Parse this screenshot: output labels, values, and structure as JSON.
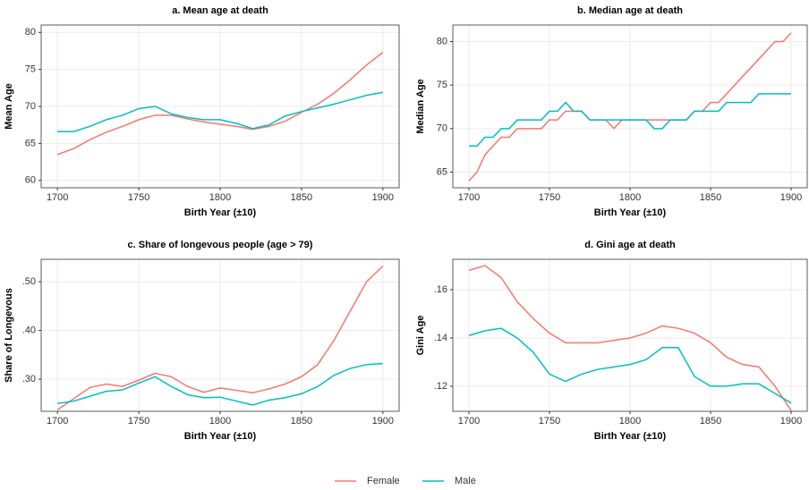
{
  "chart_data": [
    {
      "type": "line",
      "title": "a. Mean age at death",
      "xlabel": "Birth Year (±10)",
      "ylabel": "Mean Age",
      "x": [
        1700,
        1710,
        1720,
        1730,
        1740,
        1750,
        1760,
        1770,
        1780,
        1790,
        1800,
        1810,
        1820,
        1830,
        1840,
        1850,
        1860,
        1870,
        1880,
        1890,
        1900
      ],
      "series": [
        {
          "name": "Female",
          "color": "#F8766D",
          "values": [
            63.5,
            64.3,
            65.5,
            66.5,
            67.3,
            68.2,
            68.8,
            68.8,
            68.3,
            67.9,
            67.6,
            67.3,
            66.9,
            67.3,
            68.0,
            69.2,
            70.3,
            71.8,
            73.6,
            75.6,
            77.3
          ]
        },
        {
          "name": "Male",
          "color": "#00BFC4",
          "values": [
            66.6,
            66.6,
            67.3,
            68.2,
            68.8,
            69.7,
            70.0,
            69.0,
            68.5,
            68.2,
            68.2,
            67.7,
            67.0,
            67.5,
            68.7,
            69.3,
            69.8,
            70.3,
            70.9,
            71.5,
            71.9
          ]
        }
      ],
      "xlim": [
        1690,
        1910
      ],
      "xticks": [
        1700,
        1750,
        1800,
        1850,
        1900
      ],
      "ylim": [
        59,
        81
      ],
      "yticks": [
        60,
        65,
        70,
        75,
        80
      ],
      "grid": true
    },
    {
      "type": "line",
      "title": "b. Median age at death",
      "xlabel": "Birth Year (±10)",
      "ylabel": "Median Age",
      "x": [
        1700,
        1705,
        1710,
        1715,
        1720,
        1725,
        1730,
        1735,
        1740,
        1745,
        1750,
        1755,
        1760,
        1765,
        1770,
        1775,
        1780,
        1785,
        1790,
        1795,
        1800,
        1805,
        1810,
        1815,
        1820,
        1825,
        1830,
        1835,
        1840,
        1845,
        1850,
        1855,
        1860,
        1865,
        1870,
        1875,
        1880,
        1885,
        1890,
        1895,
        1900
      ],
      "series": [
        {
          "name": "Female",
          "color": "#F8766D",
          "values": [
            64,
            65,
            67,
            68,
            69,
            69,
            70,
            70,
            70,
            70,
            71,
            71,
            72,
            72,
            72,
            71,
            71,
            71,
            70,
            71,
            71,
            71,
            71,
            71,
            71,
            71,
            71,
            71,
            72,
            72,
            73,
            73,
            74,
            75,
            76,
            77,
            78,
            79,
            80,
            80,
            81
          ]
        },
        {
          "name": "Male",
          "color": "#00BFC4",
          "values": [
            68,
            68,
            69,
            69,
            70,
            70,
            71,
            71,
            71,
            71,
            72,
            72,
            73,
            72,
            72,
            71,
            71,
            71,
            71,
            71,
            71,
            71,
            71,
            70,
            70,
            71,
            71,
            71,
            72,
            72,
            72,
            72,
            73,
            73,
            73,
            73,
            74,
            74,
            74,
            74,
            74
          ]
        }
      ],
      "xlim": [
        1690,
        1910
      ],
      "xticks": [
        1700,
        1750,
        1800,
        1850,
        1900
      ],
      "ylim": [
        63.2,
        81.9
      ],
      "yticks": [
        65,
        70,
        75,
        80
      ],
      "grid": true
    },
    {
      "type": "line",
      "title": "c. Share of longevous people (age > 79)",
      "xlabel": "Birth Year (±10)",
      "ylabel": "Share of Longevous",
      "x": [
        1700,
        1710,
        1720,
        1730,
        1740,
        1750,
        1760,
        1770,
        1780,
        1790,
        1800,
        1810,
        1820,
        1830,
        1840,
        1850,
        1860,
        1870,
        1880,
        1890,
        1900
      ],
      "series": [
        {
          "name": "Female",
          "color": "#F8766D",
          "values": [
            0.237,
            0.26,
            0.283,
            0.29,
            0.285,
            0.298,
            0.312,
            0.305,
            0.285,
            0.273,
            0.282,
            0.277,
            0.272,
            0.28,
            0.29,
            0.305,
            0.33,
            0.38,
            0.44,
            0.5,
            0.532
          ]
        },
        {
          "name": "Male",
          "color": "#00BFC4",
          "values": [
            0.25,
            0.255,
            0.265,
            0.275,
            0.278,
            0.292,
            0.305,
            0.285,
            0.268,
            0.262,
            0.263,
            0.255,
            0.247,
            0.257,
            0.262,
            0.27,
            0.285,
            0.308,
            0.322,
            0.33,
            0.332
          ]
        }
      ],
      "xlim": [
        1690,
        1910
      ],
      "xticks": [
        1700,
        1750,
        1800,
        1850,
        1900
      ],
      "ylim": [
        0.234,
        0.546
      ],
      "yticks": [
        {
          "value": 0.3,
          "label": ".30"
        },
        {
          "value": 0.4,
          "label": ".40"
        },
        {
          "value": 0.5,
          "label": ".50"
        }
      ],
      "grid": true
    },
    {
      "type": "line",
      "title": "d. Gini age at death",
      "xlabel": "Birth Year (±10)",
      "ylabel": "Gini Age",
      "x": [
        1700,
        1710,
        1720,
        1730,
        1740,
        1750,
        1760,
        1770,
        1780,
        1790,
        1800,
        1810,
        1820,
        1830,
        1840,
        1850,
        1860,
        1870,
        1880,
        1890,
        1900
      ],
      "series": [
        {
          "name": "Female",
          "color": "#F8766D",
          "values": [
            0.168,
            0.17,
            0.165,
            0.155,
            0.148,
            0.142,
            0.138,
            0.138,
            0.138,
            0.139,
            0.14,
            0.142,
            0.145,
            0.144,
            0.142,
            0.138,
            0.132,
            0.129,
            0.128,
            0.12,
            0.11
          ]
        },
        {
          "name": "Male",
          "color": "#00BFC4",
          "values": [
            0.141,
            0.143,
            0.144,
            0.14,
            0.134,
            0.125,
            0.122,
            0.125,
            0.127,
            0.128,
            0.129,
            0.131,
            0.136,
            0.136,
            0.124,
            0.12,
            0.12,
            0.121,
            0.121,
            0.117,
            0.113
          ]
        }
      ],
      "xlim": [
        1690,
        1910
      ],
      "xticks": [
        1700,
        1750,
        1800,
        1850,
        1900
      ],
      "ylim": [
        0.1096,
        0.1726
      ],
      "yticks": [
        {
          "value": 0.12,
          "label": ".12"
        },
        {
          "value": 0.14,
          "label": ".14"
        },
        {
          "value": 0.16,
          "label": ".16"
        }
      ],
      "grid": true
    }
  ]
}
